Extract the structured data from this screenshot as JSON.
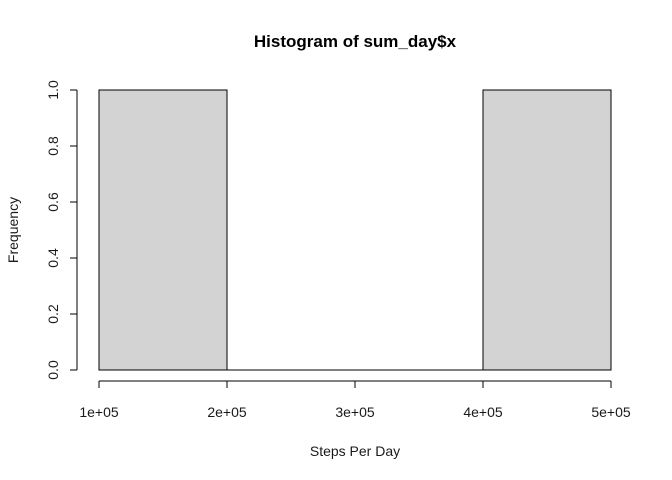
{
  "chart_data": {
    "type": "bar",
    "title": "Histogram of sum_day$x",
    "xlabel": "Steps Per Day",
    "ylabel": "Frequency",
    "bins": [
      {
        "from": 100000,
        "to": 200000,
        "count": 1
      },
      {
        "from": 200000,
        "to": 300000,
        "count": 0
      },
      {
        "from": 300000,
        "to": 400000,
        "count": 0
      },
      {
        "from": 400000,
        "to": 500000,
        "count": 1
      }
    ],
    "xlim": [
      100000,
      500000
    ],
    "ylim": [
      0,
      1
    ],
    "x_ticks": [
      100000,
      200000,
      300000,
      400000,
      500000
    ],
    "x_tick_labels": [
      "1e+05",
      "2e+05",
      "3e+05",
      "4e+05",
      "5e+05"
    ],
    "y_ticks": [
      0.0,
      0.2,
      0.4,
      0.6,
      0.8,
      1.0
    ],
    "y_tick_labels": [
      "0.0",
      "0.2",
      "0.4",
      "0.6",
      "0.8",
      "1.0"
    ],
    "grid": false,
    "bar_color": "#d3d3d3",
    "edge_color": "#000000"
  }
}
